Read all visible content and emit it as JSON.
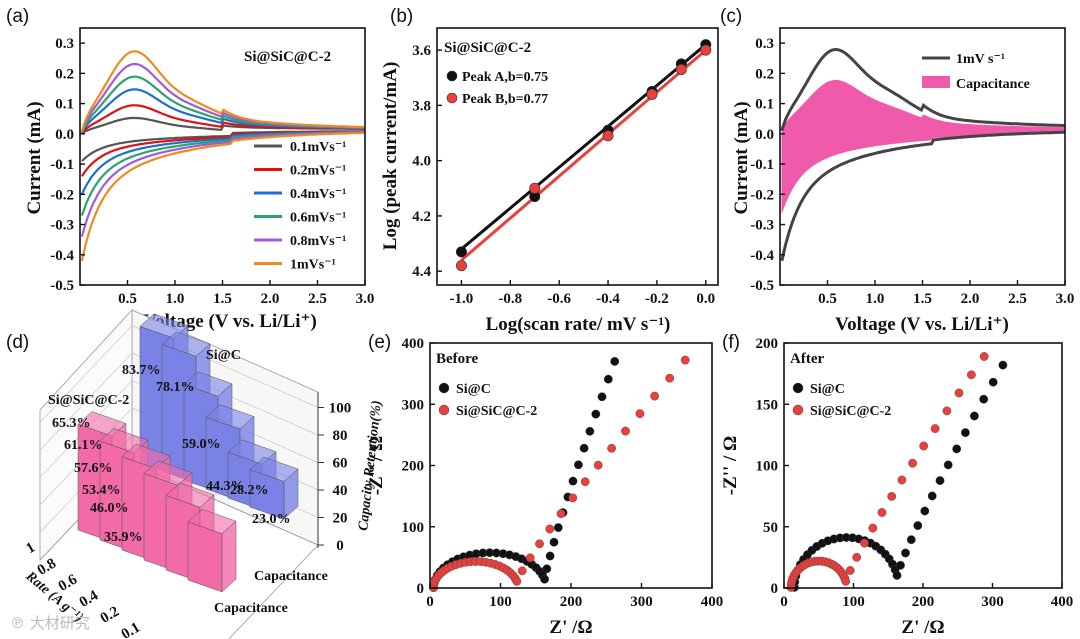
{
  "colors": {
    "s01": "#555555",
    "s02": "#e01010",
    "s04": "#1f6fd0",
    "s06": "#2aa56a",
    "s08": "#a25ad8",
    "s10": "#ee8a22",
    "pink": "#f05aaa",
    "black": "#111111",
    "red": "#e8403c",
    "bar_pink": "#f26aa8",
    "bar_blue": "#7a82e6"
  },
  "panels": {
    "a": "(a)",
    "b": "(b)",
    "c": "(c)",
    "d": "(d)",
    "e": "(e)",
    "f": "(f)"
  },
  "watermark": "℗ 大材研究",
  "chart_data": [
    {
      "id": "a",
      "type": "line",
      "title": "Si@SiC@C-2",
      "xlabel": "Voltage (V vs. Li/Li⁺)",
      "ylabel": "Current (mA)",
      "xlim": [
        0.0,
        3.0
      ],
      "ylim": [
        -0.5,
        0.35
      ],
      "xticks": [
        "0.5",
        "1.0",
        "1.5",
        "2.0",
        "2.5",
        "3.0"
      ],
      "yticks": [
        "0.3",
        "0.2",
        "0.1",
        "0.0",
        "-0.1",
        "-0.2",
        "-0.3",
        "-0.4",
        "-0.5"
      ],
      "legend_position": "bottom-right",
      "series": [
        {
          "name": "0.1mVs⁻¹",
          "color_key": "s01",
          "peak": 0.05,
          "min": -0.09
        },
        {
          "name": "0.2mVs⁻¹",
          "color_key": "s02",
          "peak": 0.09,
          "min": -0.14
        },
        {
          "name": "0.4mVs⁻¹",
          "color_key": "s04",
          "peak": 0.14,
          "min": -0.2
        },
        {
          "name": "0.6mVs⁻¹",
          "color_key": "s06",
          "peak": 0.18,
          "min": -0.27
        },
        {
          "name": "0.8mVs⁻¹",
          "color_key": "s08",
          "peak": 0.22,
          "min": -0.34
        },
        {
          "name": "1mVs⁻¹",
          "color_key": "s10",
          "peak": 0.26,
          "min": -0.42
        }
      ]
    },
    {
      "id": "b",
      "type": "scatter",
      "title": "Si@SiC@C-2",
      "xlabel": "Log(scan rate/ mV s⁻¹)",
      "ylabel": "Log (peak current/mA)",
      "xlim": [
        -1.1,
        0.05
      ],
      "ylim": [
        -4.45,
        -3.52
      ],
      "xticks": [
        "-1.0",
        "-0.8",
        "-0.6",
        "-0.4",
        "-0.2",
        "0.0"
      ],
      "yticks": [
        "3.6",
        "3.8",
        "4.0",
        "4.2",
        "4.4"
      ],
      "legend_position": "top-left",
      "series": [
        {
          "name": "Peak A,b=0.75",
          "color_key": "black",
          "x": [
            -1.0,
            -0.7,
            -0.4,
            -0.22,
            -0.1,
            0.0
          ],
          "y": [
            -4.33,
            -4.13,
            -3.89,
            -3.75,
            -3.65,
            -3.58
          ]
        },
        {
          "name": "Peak B,b=0.77",
          "color_key": "red",
          "x": [
            -1.0,
            -0.7,
            -0.4,
            -0.22,
            -0.1,
            0.0
          ],
          "y": [
            -4.38,
            -4.1,
            -3.91,
            -3.76,
            -3.67,
            -3.6
          ]
        }
      ]
    },
    {
      "id": "c",
      "type": "area",
      "xlabel": "Voltage (V vs. Li/Li⁺)",
      "ylabel": "Current (mA)",
      "xlim": [
        0.0,
        3.0
      ],
      "ylim": [
        -0.5,
        0.35
      ],
      "xticks": [
        "0.5",
        "1.0",
        "1.5",
        "2.0",
        "2.5",
        "3.0"
      ],
      "yticks": [
        "0.3",
        "0.2",
        "0.1",
        "0.0",
        "-0.1",
        "-0.2",
        "-0.3",
        "-0.4",
        "-0.5"
      ],
      "legend_position": "top-right",
      "series": [
        {
          "name": "1mV s⁻¹",
          "color_key": "s01"
        },
        {
          "name": "Capacitance",
          "color_key": "pink"
        }
      ]
    },
    {
      "id": "d",
      "type": "bar",
      "zlabel": "Capacity Retention(%)",
      "xlabel": "Rate (A g⁻¹)",
      "zticks": [
        "0",
        "20",
        "40",
        "60",
        "80",
        "100"
      ],
      "rate_ticks": [
        "1",
        "0.8",
        "0.6",
        "0.4",
        "0.2",
        "0.1"
      ],
      "row_label": "Capacitance",
      "series": [
        {
          "name": "Si@SiC@C-2",
          "color_key": "bar_pink",
          "values": [
            65.3,
            61.1,
            57.6,
            53.4,
            46.0,
            35.9
          ]
        },
        {
          "name": "Si@C",
          "color_key": "bar_blue",
          "values": [
            83.7,
            78.1,
            59.0,
            44.3,
            28.2,
            23.0
          ]
        }
      ],
      "labels": {
        "pink": [
          "65.3%",
          "61.1%",
          "57.6%",
          "53.4%",
          "46.0%",
          "35.9%"
        ],
        "blue": [
          "83.7%",
          "78.1%",
          "59.0%",
          "44.3%",
          "28.2%",
          "23.0%"
        ]
      }
    },
    {
      "id": "e",
      "type": "scatter",
      "title": "Before",
      "xlabel": "Z' /Ω",
      "ylabel": "-Z'' / Ω",
      "xlim": [
        0,
        400
      ],
      "ylim": [
        0,
        400
      ],
      "xticks": [
        "0",
        "100",
        "200",
        "300",
        "400"
      ],
      "yticks": [
        "0",
        "100",
        "200",
        "300",
        "400"
      ],
      "legend_position": "top-left",
      "series": [
        {
          "name": "Si@C",
          "color_key": "black",
          "semicircle_center": 85,
          "semicircle_radius": 80,
          "tail_end": [
            262,
            370
          ]
        },
        {
          "name": "Si@SiC@C-2",
          "color_key": "red",
          "semicircle_center": 65,
          "semicircle_radius": 60,
          "tail_end": [
            362,
            372
          ]
        }
      ]
    },
    {
      "id": "f",
      "type": "scatter",
      "title": "After",
      "xlabel": "Z' /Ω",
      "ylabel": "-Z'' / Ω",
      "xlim": [
        0,
        400
      ],
      "ylim": [
        0,
        200
      ],
      "xticks": [
        "0",
        "100",
        "200",
        "300",
        "400"
      ],
      "yticks": [
        "0",
        "50",
        "100",
        "150",
        "200"
      ],
      "legend_position": "top-left",
      "series": [
        {
          "name": "Si@C",
          "color_key": "black",
          "semicircle_center": 90,
          "semicircle_radius": 75,
          "tail_end": [
            315,
            182
          ]
        },
        {
          "name": "Si@SiC@C-2",
          "color_key": "red",
          "semicircle_center": 50,
          "semicircle_radius": 40,
          "tail_end": [
            288,
            189
          ]
        }
      ]
    }
  ]
}
